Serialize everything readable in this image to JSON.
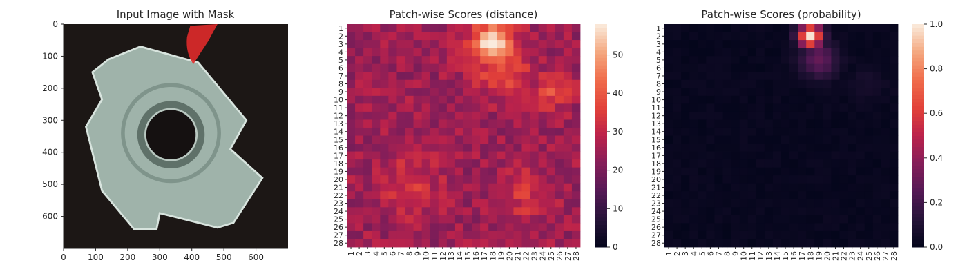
{
  "chart_data": [
    {
      "type": "image",
      "title": "Input Image with Mask",
      "xlim": [
        0,
        700
      ],
      "ylim": [
        700,
        0
      ],
      "xticks": [
        0,
        100,
        200,
        300,
        400,
        500,
        600
      ],
      "yticks": [
        0,
        100,
        200,
        300,
        400,
        500,
        600
      ],
      "colors": {
        "background": "#1c1715",
        "part": "#9fb3aa",
        "mask": "#e02a2a"
      }
    },
    {
      "type": "heatmap",
      "title": "Patch-wise Scores (distance)",
      "rows": 28,
      "cols": 28,
      "row_labels": [
        "1",
        "2",
        "3",
        "4",
        "5",
        "6",
        "7",
        "8",
        "9",
        "10",
        "11",
        "12",
        "13",
        "14",
        "15",
        "16",
        "17",
        "18",
        "19",
        "20",
        "21",
        "22",
        "23",
        "24",
        "25",
        "26",
        "27",
        "28"
      ],
      "col_labels": [
        "1",
        "2",
        "3",
        "4",
        "5",
        "6",
        "7",
        "8",
        "9",
        "10",
        "11",
        "12",
        "13",
        "14",
        "15",
        "16",
        "17",
        "18",
        "19",
        "20",
        "21",
        "22",
        "23",
        "24",
        "25",
        "26",
        "27",
        "28"
      ],
      "colorbar": {
        "min": 0,
        "max": 58,
        "ticks": [
          0,
          10,
          20,
          30,
          40,
          50
        ],
        "colormap": "rocket"
      },
      "hotspots": [
        {
          "row": 3,
          "col": 18,
          "value": 58,
          "spread": 2.6
        },
        {
          "row": 6,
          "col": 19,
          "value": 40,
          "spread": 3.0
        },
        {
          "row": 9,
          "col": 25,
          "value": 38,
          "spread": 2.2
        },
        {
          "row": 21,
          "col": 8,
          "value": 34,
          "spread": 3.5
        },
        {
          "row": 22,
          "col": 22,
          "value": 33,
          "spread": 3.0
        }
      ],
      "base_value": 25
    },
    {
      "type": "heatmap",
      "title": "Patch-wise Scores (probability)",
      "rows": 28,
      "cols": 28,
      "row_labels": [
        "1",
        "2",
        "3",
        "4",
        "5",
        "6",
        "7",
        "8",
        "9",
        "10",
        "11",
        "12",
        "13",
        "14",
        "15",
        "16",
        "17",
        "18",
        "19",
        "20",
        "21",
        "22",
        "23",
        "24",
        "25",
        "26",
        "27",
        "28"
      ],
      "col_labels": [
        "1",
        "2",
        "3",
        "4",
        "5",
        "6",
        "7",
        "8",
        "9",
        "10",
        "11",
        "12",
        "13",
        "14",
        "15",
        "16",
        "17",
        "18",
        "19",
        "20",
        "21",
        "22",
        "23",
        "24",
        "25",
        "26",
        "27",
        "28"
      ],
      "colorbar": {
        "min": 0.0,
        "max": 1.0,
        "ticks": [
          "0.0",
          "0.2",
          "0.4",
          "0.6",
          "0.8",
          "1.0"
        ],
        "colormap": "rocket"
      },
      "hotspots": [
        {
          "row": 2,
          "col": 18,
          "value": 1.0,
          "spread": 1.4
        },
        {
          "row": 5,
          "col": 19,
          "value": 0.3,
          "spread": 2.2
        },
        {
          "row": 8,
          "col": 25,
          "value": 0.08,
          "spread": 2.0
        }
      ],
      "base_value": 0.02
    }
  ]
}
